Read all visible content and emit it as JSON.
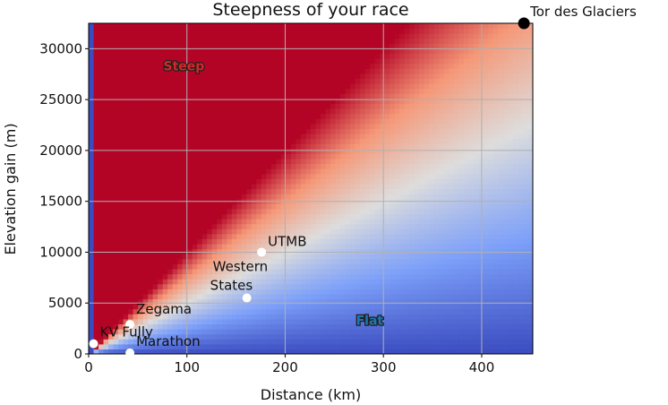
{
  "chart_data": {
    "type": "heatmap",
    "title": "Steepness of your race",
    "xlabel": "Distance (km)",
    "ylabel": "Elevation gain (m)",
    "xlim": [
      0,
      452
    ],
    "ylim": [
      0,
      32500
    ],
    "xticks": [
      0,
      100,
      200,
      300,
      400
    ],
    "yticks": [
      0,
      5000,
      10000,
      15000,
      20000,
      25000,
      30000
    ],
    "grid": true,
    "colormap": "coolwarm",
    "colors": {
      "steep": "#b40426",
      "flat": "#3b4cc0",
      "neutral": "#dddddd",
      "grid": "#b0b0b0"
    },
    "regions": [
      {
        "label": "Steep",
        "x": 97,
        "y": 28300,
        "color": "#d62728"
      },
      {
        "label": "Flat",
        "x": 286,
        "y": 3300,
        "color": "#1f77b4"
      }
    ],
    "races": [
      {
        "name": "Tor des Glaciers",
        "x": 443,
        "y": 32500,
        "highlight": true
      },
      {
        "name": "UTMB",
        "x": 176,
        "y": 10000
      },
      {
        "name": "Western States",
        "x": 161,
        "y": 5500
      },
      {
        "name": "Zegama",
        "x": 42,
        "y": 2900
      },
      {
        "name": "KV Fully",
        "x": 5,
        "y": 1000
      },
      {
        "name": "Marathon",
        "x": 42,
        "y": 100
      }
    ]
  }
}
